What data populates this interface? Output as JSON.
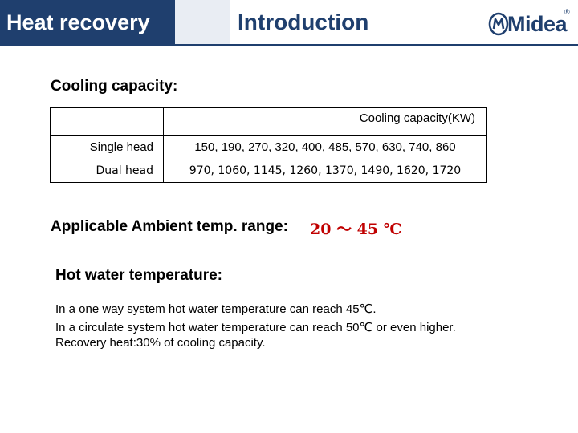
{
  "header": {
    "section_title": "Heat recovery",
    "page_title": "Introduction",
    "logo_text": "Midea",
    "logo_reg": "®",
    "colors": {
      "band": "#1f3f6e",
      "accent": "#c00000"
    }
  },
  "cooling": {
    "heading": "Cooling capacity:",
    "table": {
      "column_header": "Cooling capacity(KW)",
      "rows": [
        {
          "label": "Single head",
          "value": "150, 190, 270, 320, 400, 485, 570, 630, 740, 860"
        },
        {
          "label": "Dual head",
          "value": "970, 1060, 1145, 1260, 1370, 1490, 1620, 1720"
        }
      ]
    }
  },
  "ambient": {
    "heading": "Applicable Ambient temp. range:",
    "value": "20 ～ 45 ℃"
  },
  "hot_water": {
    "heading": "Hot water temperature:",
    "lines": [
      "In a one way system hot water temperature can reach 45℃.",
      "In a circulate system hot water temperature can reach 50℃ or even higher.",
      "Recovery heat:30% of cooling capacity."
    ]
  }
}
